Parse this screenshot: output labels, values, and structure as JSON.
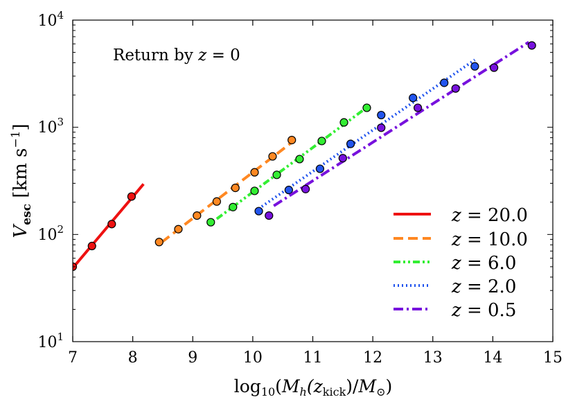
{
  "chart_data": {
    "type": "scatter",
    "title": "",
    "annotation": "Return by z = 0",
    "annotation_parts": {
      "prefix": "Return by ",
      "var": "z",
      "suffix": " = 0"
    },
    "xlabel": "log10(Mh(zkick)/M⊙)",
    "xlabel_parts": {
      "log": "log",
      "log_sub": "10",
      "open": "(",
      "M": "M",
      "h": "h",
      "z_open": "(z",
      "kick": "kick",
      "close": ")/",
      "M2": "M",
      "sun": "⊙",
      "end": ")"
    },
    "ylabel": "Vesc [km s−1]",
    "ylabel_parts": {
      "V": "V",
      "esc": "esc",
      "unit": " [km s",
      "exp": "−1",
      "close": "]"
    },
    "xlim": [
      7,
      15
    ],
    "ylim": [
      10,
      10000
    ],
    "yscale": "log",
    "x_ticks": [
      7,
      8,
      9,
      10,
      11,
      12,
      13,
      14,
      15
    ],
    "x_tick_labels": [
      "7",
      "8",
      "9",
      "10",
      "11",
      "12",
      "13",
      "14",
      "15"
    ],
    "y_ticks": [
      10,
      100,
      1000,
      10000
    ],
    "y_tick_labels": [
      {
        "base": "10",
        "exp": "1"
      },
      {
        "base": "10",
        "exp": "2"
      },
      {
        "base": "10",
        "exp": "3"
      },
      {
        "base": "10",
        "exp": "4"
      }
    ],
    "legend_position": "lower-right",
    "series": [
      {
        "name": "z = 20.0",
        "label_var": "z",
        "label_value": " = 20.0",
        "color": "#ee1111",
        "style": "solid",
        "line_x": [
          7.0,
          8.18
        ],
        "points": [
          [
            7.0,
            50
          ],
          [
            7.32,
            78
          ],
          [
            7.65,
            125
          ],
          [
            7.98,
            226
          ]
        ]
      },
      {
        "name": "z = 10.0",
        "label_var": "z",
        "label_value": " = 10.0",
        "color": "#ff8822",
        "style": "dashed",
        "line_x": [
          8.48,
          10.65
        ],
        "points": [
          [
            8.44,
            85
          ],
          [
            8.76,
            112
          ],
          [
            9.07,
            150
          ],
          [
            9.4,
            203
          ],
          [
            9.71,
            272
          ],
          [
            10.03,
            380
          ],
          [
            10.33,
            535
          ],
          [
            10.65,
            760
          ]
        ]
      },
      {
        "name": "z = 6.0",
        "label_var": "z",
        "label_value": " = 6.0",
        "color": "#33ee33",
        "style": "dashdotdot",
        "line_x": [
          9.4,
          11.85
        ],
        "points": [
          [
            9.3,
            130
          ],
          [
            9.67,
            180
          ],
          [
            10.03,
            255
          ],
          [
            10.4,
            360
          ],
          [
            10.78,
            505
          ],
          [
            11.15,
            745
          ],
          [
            11.52,
            1110
          ],
          [
            11.9,
            1520
          ]
        ]
      },
      {
        "name": "z = 2.0",
        "label_var": "z",
        "label_value": " = 2.0",
        "color": "#2255ee",
        "style": "dotted",
        "line_x": [
          10.15,
          13.7
        ],
        "points": [
          [
            10.1,
            165
          ],
          [
            10.6,
            260
          ],
          [
            11.12,
            410
          ],
          [
            11.63,
            700
          ],
          [
            12.14,
            1300
          ],
          [
            12.67,
            1880
          ],
          [
            13.19,
            2600
          ],
          [
            13.7,
            3700
          ]
        ]
      },
      {
        "name": "z = 0.5",
        "label_var": "z",
        "label_value": " = 0.5",
        "color": "#7711dd",
        "style": "dashdot",
        "line_x": [
          10.35,
          14.6
        ],
        "points": [
          [
            10.27,
            150
          ],
          [
            10.88,
            265
          ],
          [
            11.5,
            515
          ],
          [
            12.14,
            990
          ],
          [
            12.75,
            1520
          ],
          [
            13.38,
            2300
          ],
          [
            14.02,
            3600
          ],
          [
            14.65,
            5800
          ]
        ]
      }
    ]
  }
}
